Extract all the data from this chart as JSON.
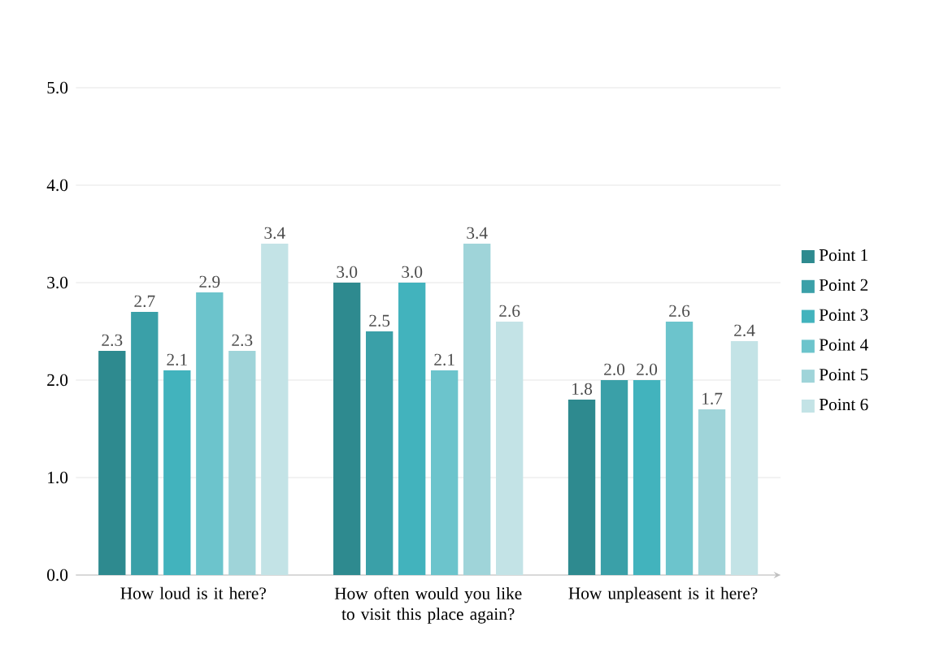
{
  "chart_data": {
    "type": "bar",
    "categories": [
      "How loud is it here?",
      "How often would you like to visit this place again?",
      "How unpleasent is it here?"
    ],
    "series": [
      {
        "name": "Point 1",
        "color": "#2e8a8f",
        "values": [
          2.3,
          3.0,
          1.8
        ],
        "value_labels": [
          "2.3",
          "3.0",
          "1.8"
        ]
      },
      {
        "name": "Point 2",
        "color": "#3aa0a8",
        "values": [
          2.7,
          2.5,
          2.0
        ],
        "value_labels": [
          "2.7",
          "2.5",
          "2.0"
        ]
      },
      {
        "name": "Point 3",
        "color": "#42b3bd",
        "values": [
          2.1,
          3.0,
          2.0
        ],
        "value_labels": [
          "2.1",
          "3.0",
          "2.0"
        ]
      },
      {
        "name": "Point 4",
        "color": "#6cc4cc",
        "values": [
          2.9,
          2.1,
          2.6
        ],
        "value_labels": [
          "2.9",
          "2.1",
          "2.6"
        ]
      },
      {
        "name": "Point 5",
        "color": "#9fd4d9",
        "values": [
          2.3,
          3.4,
          1.7
        ],
        "value_labels": [
          "2.3",
          "3.4",
          "1.7"
        ]
      },
      {
        "name": "Point 6",
        "color": "#c3e3e6",
        "values": [
          3.4,
          2.6,
          2.4
        ],
        "value_labels": [
          "3.4",
          "2.6",
          "2.4"
        ]
      }
    ],
    "ylim": [
      0,
      5
    ],
    "yticks": [
      {
        "value": 0,
        "label": "0.0"
      },
      {
        "value": 1,
        "label": "1.0"
      },
      {
        "value": 2,
        "label": "2.0"
      },
      {
        "value": 3,
        "label": "3.0"
      },
      {
        "value": 4,
        "label": "4.0"
      },
      {
        "value": 5,
        "label": "5.0"
      }
    ],
    "grid": "y",
    "legend": "right"
  }
}
